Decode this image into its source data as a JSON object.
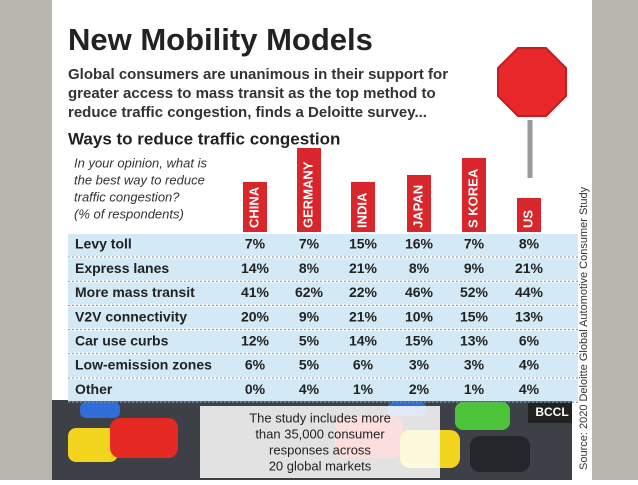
{
  "header": {
    "title": "New Mobility Models",
    "intro": [
      "Global consumers are unanimous in their support for",
      "greater access to mass transit as the top method to",
      "reduce traffic congestion, finds a Deloitte survey..."
    ],
    "subtitle": "Ways to reduce traffic congestion"
  },
  "table": {
    "question": [
      "In your opinion, what is",
      "the best way to reduce",
      "traffic congestion?",
      "(% of respondents)"
    ],
    "columns": [
      "CHINA",
      "GERMANY",
      "INDIA",
      "JAPAN",
      "S KOREA",
      "US"
    ],
    "rows": [
      [
        "Levy toll",
        "7%",
        "7%",
        "15%",
        "16%",
        "7%",
        "8%"
      ],
      [
        "Express lanes",
        "14%",
        "8%",
        "21%",
        "8%",
        "9%",
        "21%"
      ],
      [
        "More mass transit",
        "41%",
        "62%",
        "22%",
        "46%",
        "52%",
        "44%"
      ],
      [
        "V2V connectivity",
        "20%",
        "9%",
        "21%",
        "10%",
        "15%",
        "13%"
      ],
      [
        "Car use curbs",
        "12%",
        "5%",
        "14%",
        "15%",
        "13%",
        "6%"
      ],
      [
        "Low-emission zones",
        "6%",
        "5%",
        "6%",
        "3%",
        "3%",
        "4%"
      ],
      [
        "Other",
        "0%",
        "4%",
        "1%",
        "2%",
        "1%",
        "4%"
      ]
    ]
  },
  "footer": {
    "note": [
      "The study includes more",
      "than 35,000 consumer",
      "responses across",
      "20 global markets"
    ],
    "credit": "BCCL",
    "source": "Source: 2020 Deloitte Global Automotive Consumer Study"
  }
}
